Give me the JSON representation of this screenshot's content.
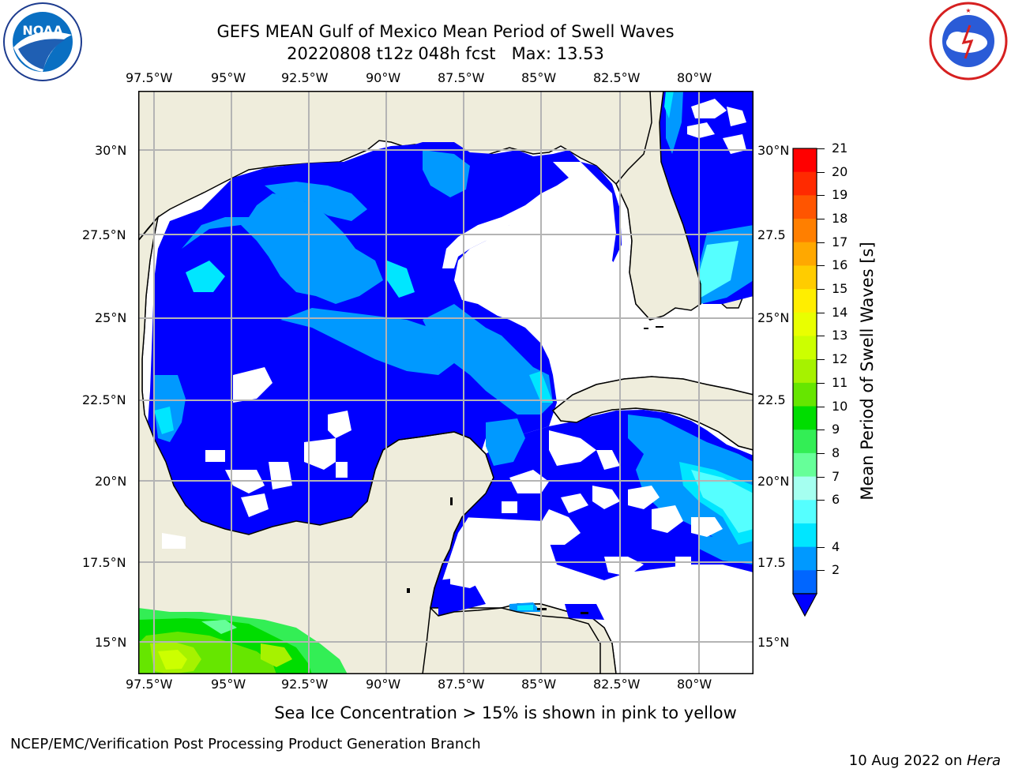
{
  "header": {
    "title_line1": "GEFS MEAN Gulf of Mexico Mean Period of Swell Waves",
    "title_line2": "20220808 t12z 048h fcst   Max: 13.53"
  },
  "logos": {
    "left": "NOAA",
    "left_ring": "NATIONAL OCEANIC AND ATMOSPHERIC ADMINISTRATION · U.S. DEPARTMENT OF COMMERCE",
    "right_ring": "NATIONAL WEATHER SERVICE"
  },
  "map": {
    "lon_labels": [
      "97.5°W",
      "95°W",
      "92.5°W",
      "90°W",
      "87.5°W",
      "85°W",
      "82.5°W",
      "80°W"
    ],
    "lat_labels_left": [
      "30°N",
      "27.5°N",
      "25°N",
      "22.5°N",
      "20°N",
      "17.5°N",
      "15°N"
    ],
    "lat_labels_right": [
      "30°N",
      "27.5",
      "25°N",
      "22.5",
      "20°N",
      "17.5",
      "15°N"
    ],
    "colors": {
      "land": "#efeddc",
      "ocean_blank": "#ffffff",
      "grid": "#b4b4b4"
    }
  },
  "colorbar": {
    "label": "Mean Period of Swell Waves [s]",
    "ticks": [
      "21",
      "20",
      "19",
      "18",
      "17",
      "16",
      "15",
      "14",
      "13",
      "12",
      "11",
      "10",
      "9",
      "8",
      "7",
      "6",
      "4",
      "2"
    ],
    "colors": [
      "#ff0000",
      "#ff2a00",
      "#ff5500",
      "#ff7f00",
      "#ffa800",
      "#ffcc00",
      "#ffee00",
      "#e9ff00",
      "#ccff00",
      "#a6f200",
      "#66e600",
      "#00dd00",
      "#33ee55",
      "#66ff99",
      "#a5fff0",
      "#55ffff",
      "#00e6ff",
      "#0099ff",
      "#0066ff"
    ],
    "under_color": "#0000ff"
  },
  "footer": {
    "note": "Sea Ice Concentration > 15% is shown in pink to yellow",
    "left": "NCEP/EMC/Verification Post Processing Product Generation Branch",
    "right_date": "10 Aug 2022 on ",
    "right_host": "Hera"
  }
}
